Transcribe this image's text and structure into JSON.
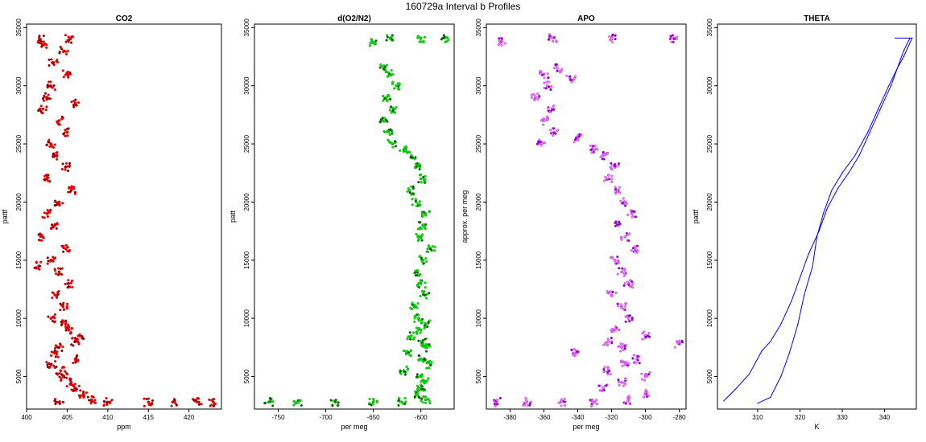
{
  "figure": {
    "title": "160729a   Interval b Profiles"
  },
  "chart_data": [
    {
      "type": "scatter",
      "title": "CO2",
      "xlabel": "ppm",
      "ylabel": "pattf",
      "xlim": [
        400,
        424
      ],
      "ylim": [
        2200,
        35300
      ],
      "xticks": [
        400,
        405,
        410,
        415,
        420
      ],
      "yticks": [
        5000,
        10000,
        15000,
        20000,
        25000,
        30000,
        35000
      ],
      "grid": false,
      "colors": {
        "main": "#ff0000",
        "dark": "#8b0000"
      },
      "points": [
        [
          401.7,
          34000
        ],
        [
          405.3,
          34000
        ],
        [
          402.1,
          33500
        ],
        [
          404.6,
          33000
        ],
        [
          403.3,
          32000
        ],
        [
          405.0,
          31000
        ],
        [
          403.0,
          30000
        ],
        [
          402.5,
          29000
        ],
        [
          406.0,
          28500
        ],
        [
          402.0,
          28000
        ],
        [
          404.0,
          27000
        ],
        [
          405.0,
          26000
        ],
        [
          403.0,
          25000
        ],
        [
          403.5,
          24000
        ],
        [
          404.8,
          23000
        ],
        [
          402.5,
          22000
        ],
        [
          405.5,
          21000
        ],
        [
          404.0,
          20000
        ],
        [
          402.5,
          19000
        ],
        [
          403.5,
          18000
        ],
        [
          402.0,
          17000
        ],
        [
          404.8,
          16000
        ],
        [
          403.0,
          15000
        ],
        [
          401.5,
          14500
        ],
        [
          404.0,
          14000
        ],
        [
          405.2,
          13000
        ],
        [
          403.5,
          12000
        ],
        [
          404.5,
          11000
        ],
        [
          403.0,
          10000
        ],
        [
          404.8,
          9500
        ],
        [
          405.2,
          9000
        ],
        [
          406.5,
          8500
        ],
        [
          406.0,
          8000
        ],
        [
          404.0,
          7500
        ],
        [
          403.5,
          7000
        ],
        [
          406.0,
          6500
        ],
        [
          403.0,
          6000
        ],
        [
          404.2,
          5500
        ],
        [
          404.5,
          5000
        ],
        [
          405.5,
          4500
        ],
        [
          406.0,
          4000
        ],
        [
          407.0,
          3500
        ],
        [
          408.0,
          3000
        ],
        [
          404.0,
          2800
        ],
        [
          410.0,
          2800
        ],
        [
          415.0,
          2800
        ],
        [
          418.0,
          2800
        ],
        [
          421.0,
          2800
        ],
        [
          423.0,
          2800
        ]
      ]
    },
    {
      "type": "scatter",
      "title": "d(O2/N2)",
      "xlabel": "per meg",
      "ylabel": "patt",
      "xlim": [
        -775,
        -565
      ],
      "ylim": [
        2200,
        35300
      ],
      "xticks": [
        -750,
        -700,
        -650,
        -600
      ],
      "yticks": [
        5000,
        10000,
        15000,
        20000,
        25000,
        30000,
        35000
      ],
      "grid": false,
      "colors": {
        "main": "#00ee00",
        "dark": "#006400"
      },
      "points": [
        [
          -632,
          34100
        ],
        [
          -600,
          34100
        ],
        [
          -575,
          34100
        ],
        [
          -650,
          33700
        ],
        [
          -638,
          31500
        ],
        [
          -633,
          31000
        ],
        [
          -626,
          30000
        ],
        [
          -636,
          29000
        ],
        [
          -628,
          28000
        ],
        [
          -640,
          27000
        ],
        [
          -634,
          26000
        ],
        [
          -630,
          25000
        ],
        [
          -618,
          24500
        ],
        [
          -610,
          24000
        ],
        [
          -605,
          23000
        ],
        [
          -600,
          22000
        ],
        [
          -612,
          21000
        ],
        [
          -605,
          20000
        ],
        [
          -595,
          19000
        ],
        [
          -598,
          18000
        ],
        [
          -603,
          17000
        ],
        [
          -590,
          16000
        ],
        [
          -598,
          15000
        ],
        [
          -605,
          14000
        ],
        [
          -600,
          13000
        ],
        [
          -596,
          12000
        ],
        [
          -607,
          11000
        ],
        [
          -602,
          10000
        ],
        [
          -595,
          9500
        ],
        [
          -600,
          9000
        ],
        [
          -610,
          8500
        ],
        [
          -598,
          8000
        ],
        [
          -595,
          7500
        ],
        [
          -615,
          7000
        ],
        [
          -600,
          6500
        ],
        [
          -590,
          6000
        ],
        [
          -618,
          5500
        ],
        [
          -600,
          5000
        ],
        [
          -596,
          4500
        ],
        [
          -600,
          4000
        ],
        [
          -605,
          3500
        ],
        [
          -595,
          3000
        ],
        [
          -620,
          2800
        ],
        [
          -650,
          2800
        ],
        [
          -690,
          2800
        ],
        [
          -730,
          2800
        ],
        [
          -760,
          2800
        ]
      ]
    },
    {
      "type": "scatter",
      "title": "APO",
      "xlabel": "per meg",
      "ylabel": "approx. per meg",
      "xlim": [
        -394,
        -276
      ],
      "ylim": [
        2200,
        35300
      ],
      "xticks": [
        -380,
        -360,
        -340,
        -320,
        -300,
        -280
      ],
      "yticks": [
        5000,
        10000,
        15000,
        20000,
        25000,
        30000,
        35000
      ],
      "grid": false,
      "colors": {
        "main": "#ee82ee",
        "dark": "#9400d3"
      },
      "points": [
        [
          -355,
          34100
        ],
        [
          -320,
          34100
        ],
        [
          -283,
          34100
        ],
        [
          -385,
          33800
        ],
        [
          -352,
          31500
        ],
        [
          -360,
          31000
        ],
        [
          -344,
          30500
        ],
        [
          -358,
          30000
        ],
        [
          -365,
          29000
        ],
        [
          -355,
          28000
        ],
        [
          -360,
          27000
        ],
        [
          -354,
          26000
        ],
        [
          -362,
          25000
        ],
        [
          -340,
          25500
        ],
        [
          -330,
          24500
        ],
        [
          -325,
          24000
        ],
        [
          -318,
          23000
        ],
        [
          -322,
          22000
        ],
        [
          -316,
          21000
        ],
        [
          -312,
          20000
        ],
        [
          -308,
          19000
        ],
        [
          -316,
          18000
        ],
        [
          -312,
          17000
        ],
        [
          -306,
          16000
        ],
        [
          -318,
          15000
        ],
        [
          -314,
          14000
        ],
        [
          -310,
          13000
        ],
        [
          -320,
          12000
        ],
        [
          -314,
          11000
        ],
        [
          -310,
          10000
        ],
        [
          -318,
          9000
        ],
        [
          -300,
          8500
        ],
        [
          -322,
          8000
        ],
        [
          -314,
          7500
        ],
        [
          -342,
          7000
        ],
        [
          -305,
          6500
        ],
        [
          -312,
          6000
        ],
        [
          -322,
          5500
        ],
        [
          -300,
          5000
        ],
        [
          -314,
          4500
        ],
        [
          -325,
          4000
        ],
        [
          -300,
          3500
        ],
        [
          -310,
          3000
        ],
        [
          -330,
          2800
        ],
        [
          -350,
          2800
        ],
        [
          -370,
          2800
        ],
        [
          -388,
          2800
        ],
        [
          -280,
          7800
        ]
      ]
    },
    {
      "type": "line",
      "title": "THETA",
      "xlabel": "K",
      "ylabel": "pattf",
      "xlim": [
        300.5,
        347.5
      ],
      "ylim": [
        2200,
        35300
      ],
      "xticks": [
        310,
        320,
        330,
        340
      ],
      "yticks": [
        5000,
        10000,
        15000,
        20000,
        25000,
        30000,
        35000
      ],
      "grid": false,
      "colors": {
        "main": "#0000ff"
      },
      "series": [
        {
          "x": [
            302.0,
            305.0,
            308.0,
            311.0,
            313.0,
            315.5,
            318.0,
            320.0,
            322.0,
            324.5,
            326.5,
            329.0,
            331.5,
            334.0,
            336.5,
            339.0,
            341.5,
            343.0,
            344.5,
            346.0
          ],
          "y": [
            2900,
            4000,
            5200,
            7200,
            8000,
            9500,
            11500,
            13500,
            15500,
            17500,
            19500,
            21200,
            22500,
            24000,
            26000,
            28000,
            30000,
            31500,
            33000,
            34100
          ]
        },
        {
          "x": [
            310.0,
            313.0,
            315.5,
            317.5,
            319.5,
            321.0,
            323.0,
            324.0,
            325.5,
            327.5,
            330.0,
            333.0,
            336.0,
            338.5,
            341.0,
            343.0,
            344.5,
            345.5,
            346.5,
            342.5
          ],
          "y": [
            2700,
            3200,
            5000,
            7000,
            9500,
            12000,
            14500,
            17000,
            19000,
            21000,
            22500,
            24000,
            26000,
            28000,
            30000,
            31500,
            32500,
            33300,
            34100,
            34100
          ]
        }
      ]
    }
  ]
}
